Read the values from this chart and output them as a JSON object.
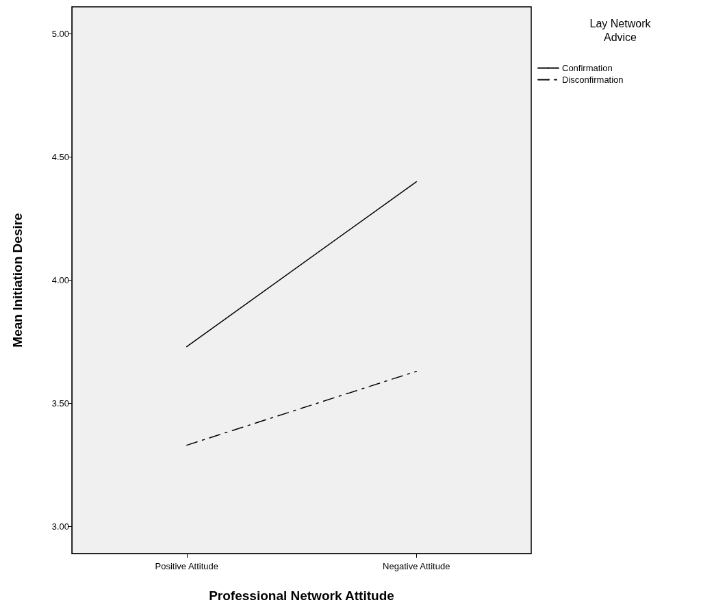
{
  "chart_data": {
    "type": "line",
    "xlabel": "Professional Network Attitude",
    "ylabel": "Mean Initiation Desire",
    "legend_title": "Lay Network Advice",
    "categories": [
      "Positive Attitude",
      "Negative Attitude"
    ],
    "series": [
      {
        "name": "Confirmation",
        "color": "#000000",
        "values": [
          3.73,
          4.4
        ],
        "line_style": "solid"
      },
      {
        "name": "Disconfirmation",
        "color": "#000000",
        "values": [
          3.33,
          3.63
        ],
        "line_style": "dashed"
      }
    ],
    "ylim": [
      2.89,
      5.11
    ],
    "yticks": [
      {
        "value": 3,
        "label": "3.00"
      },
      {
        "value": 3.5,
        "label": "3.50"
      },
      {
        "value": 4,
        "label": "4.00"
      },
      {
        "value": 4.5,
        "label": "4.50"
      },
      {
        "value": 5,
        "label": "5.00"
      }
    ],
    "grid": false,
    "legend": "top right",
    "marker": "none"
  }
}
